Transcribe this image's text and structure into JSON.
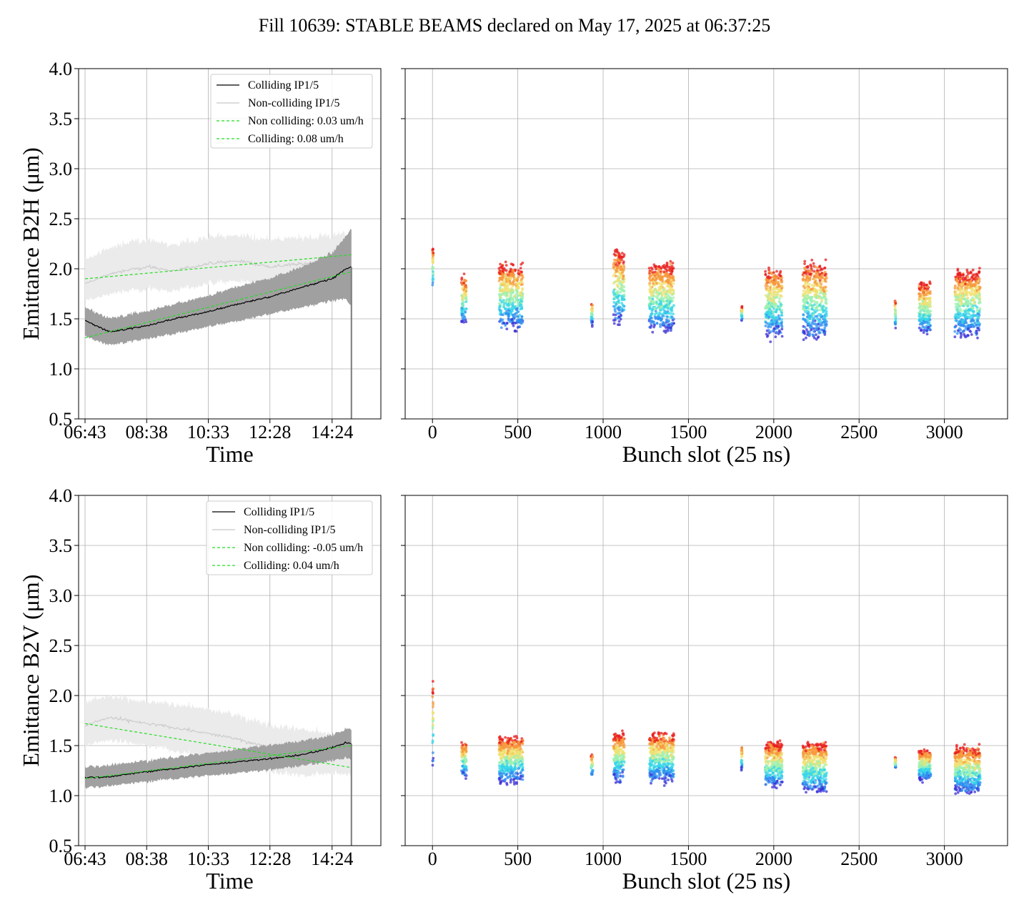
{
  "figure": {
    "title": "Fill 10639: STABLE BEAMS declared on May 17, 2025 at 06:37:25"
  },
  "colors": {
    "colliding_line": "#000000",
    "colliding_band": "#a0a0a0",
    "noncolliding_line": "#c8c8c8",
    "noncolliding_band": "#ebebeb",
    "fit": "#22dd22",
    "grid": "#b0b0b0"
  },
  "chart_data": [
    {
      "type": "line",
      "panel": "B2H time evolution",
      "ylabel": "Emittance B2H (μm)",
      "xlabel": "Time",
      "ylim": [
        0.5,
        4.0
      ],
      "yticks": [
        "0.5",
        "1.0",
        "1.5",
        "2.0",
        "2.5",
        "3.0",
        "3.5",
        "4.0"
      ],
      "xlim_hours_after_0643": [
        -0.2,
        9.2
      ],
      "xticks": [
        "06:43",
        "08:38",
        "10:33",
        "12:28",
        "14:24"
      ],
      "grid": true,
      "legend_position": "top-right",
      "legend": [
        "Colliding IP1/5",
        "Non-colliding IP1/5",
        "Non colliding: 0.03 um/h",
        "Colliding: 0.08 um/h"
      ],
      "series": [
        {
          "name": "Colliding IP1/5",
          "time": [
            "06:43",
            "07:30",
            "08:38",
            "09:30",
            "10:33",
            "11:30",
            "12:28",
            "13:30",
            "14:24",
            "14:50",
            "15:00"
          ],
          "values": [
            1.48,
            1.37,
            1.43,
            1.5,
            1.57,
            1.65,
            1.72,
            1.82,
            1.9,
            2.0,
            2.02
          ],
          "band_low": [
            1.32,
            1.24,
            1.3,
            1.35,
            1.42,
            1.48,
            1.55,
            1.62,
            1.68,
            1.7,
            1.62
          ],
          "band_high": [
            1.6,
            1.5,
            1.57,
            1.64,
            1.72,
            1.82,
            1.9,
            2.02,
            2.15,
            2.32,
            2.4
          ]
        },
        {
          "name": "Non-colliding IP1/5",
          "time": [
            "06:43",
            "07:30",
            "08:38",
            "09:30",
            "10:33",
            "11:30",
            "12:28",
            "13:30",
            "14:24",
            "15:00"
          ],
          "values": [
            1.85,
            1.95,
            2.02,
            1.98,
            2.05,
            2.08,
            2.02,
            2.05,
            2.08,
            2.1
          ],
          "band_low": [
            1.68,
            1.75,
            1.8,
            1.78,
            1.85,
            1.88,
            1.82,
            1.85,
            1.9,
            1.92
          ],
          "band_high": [
            2.08,
            2.2,
            2.28,
            2.22,
            2.3,
            2.32,
            2.28,
            2.3,
            2.32,
            2.35
          ]
        },
        {
          "name": "Non colliding: 0.03 um/h",
          "time": [
            "06:43",
            "15:00"
          ],
          "values": [
            1.9,
            2.14
          ]
        },
        {
          "name": "Colliding: 0.08 um/h",
          "time": [
            "06:43",
            "15:00"
          ],
          "values": [
            1.31,
            1.97
          ]
        }
      ]
    },
    {
      "type": "scatter",
      "panel": "B2H per bunch",
      "xlabel": "Bunch slot (25 ns)",
      "xlim": [
        -160,
        3370
      ],
      "xticks": [
        "0",
        "500",
        "1000",
        "1500",
        "2000",
        "2500",
        "3000"
      ],
      "ylim": [
        0.5,
        4.0
      ],
      "grid": true,
      "colormap": [
        "#3b2fd6",
        "#2f8ff0",
        "#36d6e8",
        "#9ef0b0",
        "#f0e070",
        "#f79a3c",
        "#e81c1c"
      ],
      "trains": [
        {
          "start": 0,
          "end": 5,
          "low": 1.7,
          "high": 2.3
        },
        {
          "start": 170,
          "end": 200,
          "low": 1.35,
          "high": 2.0
        },
        {
          "start": 390,
          "end": 530,
          "low": 1.28,
          "high": 2.15
        },
        {
          "start": 930,
          "end": 940,
          "low": 1.4,
          "high": 1.7
        },
        {
          "start": 1060,
          "end": 1125,
          "low": 1.3,
          "high": 2.3
        },
        {
          "start": 1270,
          "end": 1415,
          "low": 1.25,
          "high": 2.15
        },
        {
          "start": 1810,
          "end": 1815,
          "low": 1.45,
          "high": 1.65
        },
        {
          "start": 1950,
          "end": 2050,
          "low": 1.2,
          "high": 2.1
        },
        {
          "start": 2170,
          "end": 2310,
          "low": 1.18,
          "high": 2.15
        },
        {
          "start": 2710,
          "end": 2715,
          "low": 1.35,
          "high": 1.75
        },
        {
          "start": 2850,
          "end": 2920,
          "low": 1.25,
          "high": 1.95
        },
        {
          "start": 3060,
          "end": 3210,
          "low": 1.2,
          "high": 2.1
        }
      ]
    },
    {
      "type": "line",
      "panel": "B2V time evolution",
      "ylabel": "Emittance B2V (μm)",
      "xlabel": "Time",
      "ylim": [
        0.5,
        4.0
      ],
      "yticks": [
        "0.5",
        "1.0",
        "1.5",
        "2.0",
        "2.5",
        "3.0",
        "3.5",
        "4.0"
      ],
      "xlim_hours_after_0643": [
        -0.2,
        9.2
      ],
      "xticks": [
        "06:43",
        "08:38",
        "10:33",
        "12:28",
        "14:24"
      ],
      "grid": true,
      "legend_position": "top-right",
      "legend": [
        "Colliding IP1/5",
        "Non-colliding IP1/5",
        "Non colliding: -0.05 um/h",
        "Colliding: 0.04 um/h"
      ],
      "series": [
        {
          "name": "Colliding IP1/5",
          "time": [
            "06:43",
            "07:30",
            "08:38",
            "09:30",
            "10:33",
            "11:30",
            "12:28",
            "13:30",
            "14:24",
            "14:50",
            "15:00"
          ],
          "values": [
            1.18,
            1.19,
            1.24,
            1.27,
            1.31,
            1.34,
            1.37,
            1.41,
            1.48,
            1.53,
            1.52
          ],
          "band_low": [
            1.08,
            1.1,
            1.14,
            1.17,
            1.2,
            1.23,
            1.26,
            1.3,
            1.35,
            1.38,
            1.36
          ],
          "band_high": [
            1.28,
            1.3,
            1.34,
            1.38,
            1.42,
            1.46,
            1.5,
            1.54,
            1.6,
            1.66,
            1.66
          ]
        },
        {
          "name": "Non-colliding IP1/5",
          "time": [
            "06:43",
            "07:30",
            "08:38",
            "09:30",
            "10:33",
            "11:30",
            "12:28",
            "13:30",
            "14:24",
            "15:00"
          ],
          "values": [
            1.7,
            1.78,
            1.72,
            1.68,
            1.62,
            1.56,
            1.48,
            1.42,
            1.4,
            1.38
          ],
          "band_low": [
            1.5,
            1.55,
            1.5,
            1.45,
            1.38,
            1.32,
            1.25,
            1.2,
            1.22,
            1.2
          ],
          "band_high": [
            1.92,
            1.98,
            1.92,
            1.9,
            1.85,
            1.78,
            1.7,
            1.65,
            1.6,
            1.58
          ]
        },
        {
          "name": "Non colliding: -0.05 um/h",
          "time": [
            "06:43",
            "15:00"
          ],
          "values": [
            1.72,
            1.28
          ]
        },
        {
          "name": "Colliding: 0.04 um/h",
          "time": [
            "06:43",
            "15:00"
          ],
          "values": [
            1.17,
            1.5
          ]
        }
      ]
    },
    {
      "type": "scatter",
      "panel": "B2V per bunch",
      "xlabel": "Bunch slot (25 ns)",
      "xlim": [
        -160,
        3370
      ],
      "xticks": [
        "0",
        "500",
        "1000",
        "1500",
        "2000",
        "2500",
        "3000"
      ],
      "ylim": [
        0.5,
        4.0
      ],
      "grid": true,
      "colormap": [
        "#3b2fd6",
        "#2f8ff0",
        "#36d6e8",
        "#9ef0b0",
        "#f0e070",
        "#f79a3c",
        "#e81c1c"
      ],
      "trains": [
        {
          "start": 0,
          "end": 5,
          "low": 1.15,
          "high": 2.25
        },
        {
          "start": 170,
          "end": 200,
          "low": 1.12,
          "high": 1.6
        },
        {
          "start": 390,
          "end": 530,
          "low": 1.05,
          "high": 1.65
        },
        {
          "start": 930,
          "end": 940,
          "low": 1.15,
          "high": 1.45
        },
        {
          "start": 1060,
          "end": 1125,
          "low": 1.05,
          "high": 1.7
        },
        {
          "start": 1270,
          "end": 1415,
          "low": 1.05,
          "high": 1.7
        },
        {
          "start": 1810,
          "end": 1815,
          "low": 1.2,
          "high": 1.55
        },
        {
          "start": 1950,
          "end": 2050,
          "low": 1.0,
          "high": 1.6
        },
        {
          "start": 2170,
          "end": 2310,
          "low": 0.95,
          "high": 1.6
        },
        {
          "start": 2710,
          "end": 2715,
          "low": 1.25,
          "high": 1.4
        },
        {
          "start": 2850,
          "end": 2920,
          "low": 1.1,
          "high": 1.5
        },
        {
          "start": 3060,
          "end": 3210,
          "low": 0.95,
          "high": 1.55
        }
      ]
    }
  ]
}
